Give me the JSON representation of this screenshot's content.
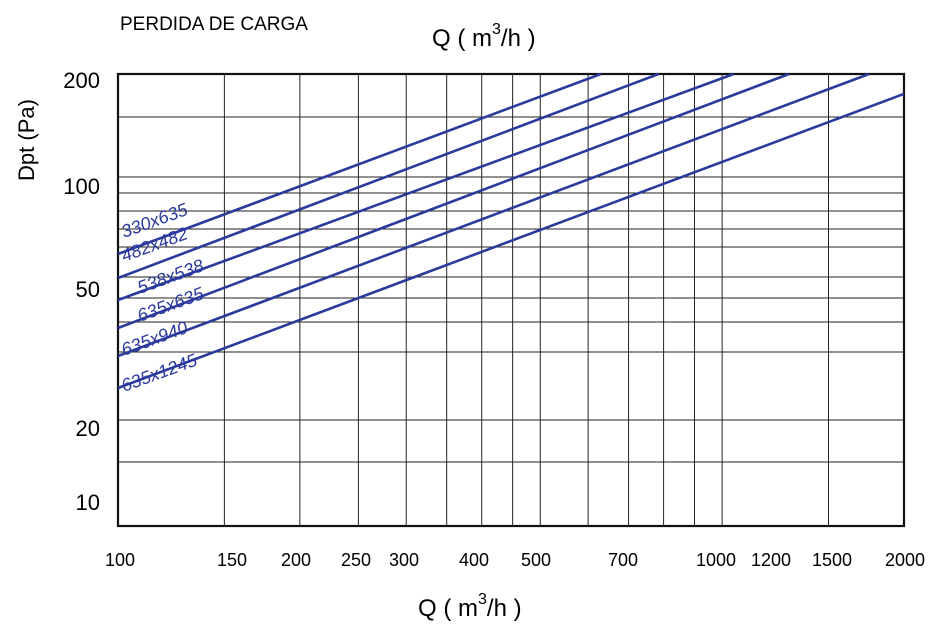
{
  "chart_data": {
    "type": "line",
    "title": "PERDIDA DE CARGA",
    "top_axis_label": "Q ( m3/h )",
    "xlabel": "Q ( m3/h )",
    "ylabel": "Dpt (Pa)",
    "x_scale": "log",
    "y_scale": "log",
    "xlim": [
      100,
      2000
    ],
    "x_ticks": [
      100,
      150,
      200,
      250,
      300,
      400,
      500,
      700,
      1000,
      1200,
      1500,
      2000
    ],
    "y_ticks": [
      10,
      20,
      50,
      100,
      200
    ],
    "grid": true,
    "line_color": "#2b3a9c",
    "series": [
      {
        "name": "330x635",
        "x": [
          100,
          630
        ],
        "y": [
          62,
          200
        ]
      },
      {
        "name": "482x482",
        "x": [
          100,
          785
        ],
        "y": [
          52,
          200
        ]
      },
      {
        "name": "538x538",
        "x": [
          100,
          1045
        ],
        "y": [
          44,
          200
        ]
      },
      {
        "name": "635x635",
        "x": [
          100,
          1290
        ],
        "y": [
          37,
          200
        ]
      },
      {
        "name": "635x940",
        "x": [
          100,
          1750
        ],
        "y": [
          31,
          200
        ]
      },
      {
        "name": "635x1245",
        "x": [
          100,
          2000
        ],
        "y": [
          26,
          175
        ]
      }
    ]
  }
}
